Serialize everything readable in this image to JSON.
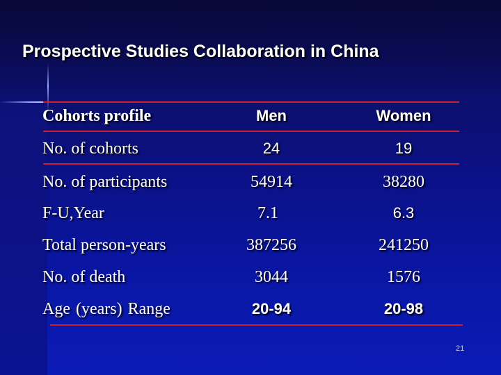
{
  "slide": {
    "title": "Prospective Studies Collaboration in China",
    "page_number": "21"
  },
  "table": {
    "headers": [
      "Cohorts profile",
      "Men",
      "Women"
    ],
    "rows": [
      [
        "No. of cohorts",
        "24",
        "19"
      ],
      [
        "No. of participants",
        "54914",
        "38280"
      ],
      [
        "F-U,Year",
        "7.1",
        "6.3"
      ],
      [
        "Total person-years",
        "387256",
        "241250"
      ],
      [
        "No. of death",
        "3044",
        "1576"
      ],
      [
        "Age (years)  Range",
        "20-94",
        "20-98"
      ]
    ]
  },
  "colors": {
    "background": "#0a0e70",
    "rule": "#cf1d2c",
    "text": "#ffffff"
  }
}
